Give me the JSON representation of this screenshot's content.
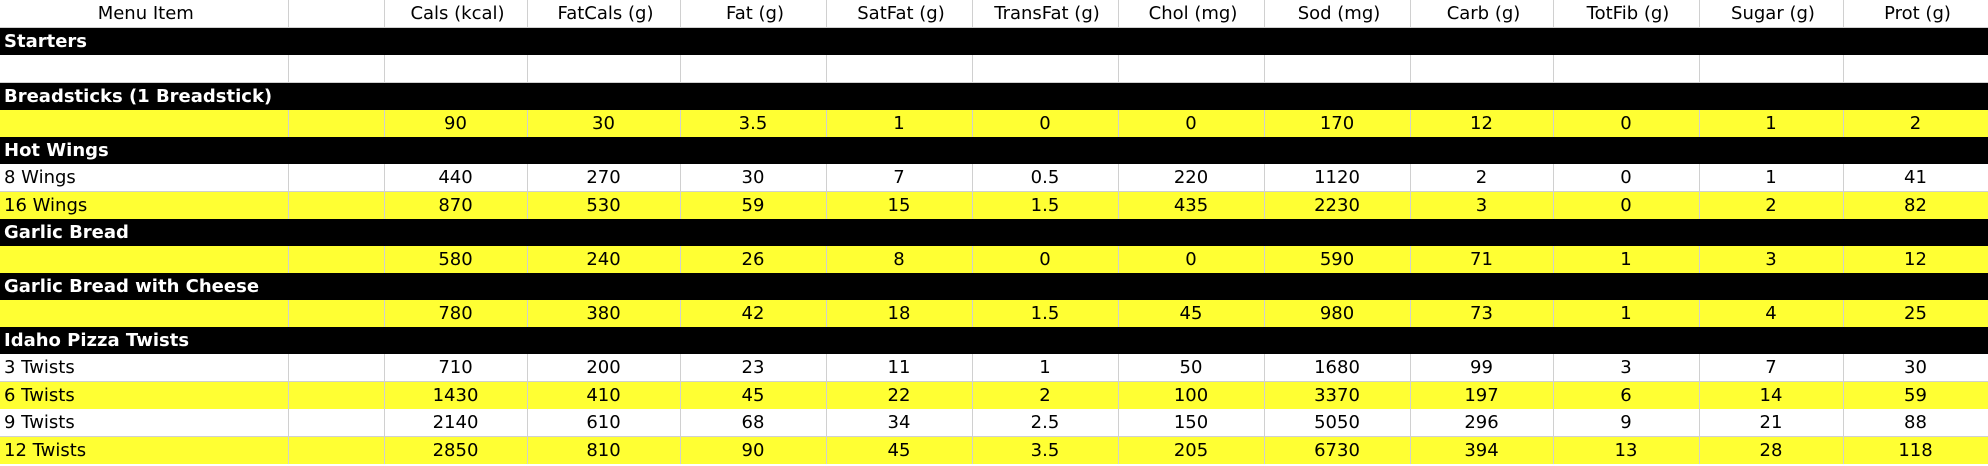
{
  "columns": [
    "Menu Item",
    "",
    "Cals (kcal)",
    "FatCals (g)",
    "Fat (g)",
    "SatFat (g)",
    "TransFat (g)",
    "Chol (mg)",
    "Sod (mg)",
    "Carb (g)",
    "TotFib (g)",
    "Sugar (g)",
    "Prot (g)"
  ],
  "colors": {
    "section_bg": "#000000",
    "section_text": "#ffffff",
    "highlight_row": "#ffff33",
    "plain_row": "#ffffff"
  },
  "rows": [
    {
      "kind": "section",
      "label": "Starters"
    },
    {
      "kind": "spacer"
    },
    {
      "kind": "section",
      "label": "Breadsticks (1 Breadstick)"
    },
    {
      "kind": "data",
      "style": "yellow",
      "name": "",
      "values": [
        "90",
        "30",
        "3.5",
        "1",
        "0",
        "0",
        "170",
        "12",
        "0",
        "1",
        "2"
      ]
    },
    {
      "kind": "section",
      "label": "Hot Wings"
    },
    {
      "kind": "data",
      "style": "white",
      "name": "8 Wings",
      "values": [
        "440",
        "270",
        "30",
        "7",
        "0.5",
        "220",
        "1120",
        "2",
        "0",
        "1",
        "41"
      ]
    },
    {
      "kind": "data",
      "style": "yellow",
      "name": "16 Wings",
      "values": [
        "870",
        "530",
        "59",
        "15",
        "1.5",
        "435",
        "2230",
        "3",
        "0",
        "2",
        "82"
      ]
    },
    {
      "kind": "section",
      "label": "Garlic Bread"
    },
    {
      "kind": "data",
      "style": "yellow",
      "name": "",
      "values": [
        "580",
        "240",
        "26",
        "8",
        "0",
        "0",
        "590",
        "71",
        "1",
        "3",
        "12"
      ]
    },
    {
      "kind": "section",
      "label": "Garlic Bread with Cheese"
    },
    {
      "kind": "data",
      "style": "yellow",
      "name": "",
      "values": [
        "780",
        "380",
        "42",
        "18",
        "1.5",
        "45",
        "980",
        "73",
        "1",
        "4",
        "25"
      ]
    },
    {
      "kind": "section",
      "label": "Idaho Pizza Twists"
    },
    {
      "kind": "data",
      "style": "white",
      "name": "3 Twists",
      "values": [
        "710",
        "200",
        "23",
        "11",
        "1",
        "50",
        "1680",
        "99",
        "3",
        "7",
        "30"
      ]
    },
    {
      "kind": "data",
      "style": "yellow",
      "name": "6 Twists",
      "values": [
        "1430",
        "410",
        "45",
        "22",
        "2",
        "100",
        "3370",
        "197",
        "6",
        "14",
        "59"
      ]
    },
    {
      "kind": "data",
      "style": "white",
      "name": "9 Twists",
      "values": [
        "2140",
        "610",
        "68",
        "34",
        "2.5",
        "150",
        "5050",
        "296",
        "9",
        "21",
        "88"
      ]
    },
    {
      "kind": "data",
      "style": "yellow",
      "name": "12 Twists",
      "values": [
        "2850",
        "810",
        "90",
        "45",
        "3.5",
        "205",
        "6730",
        "394",
        "13",
        "28",
        "118"
      ]
    }
  ]
}
